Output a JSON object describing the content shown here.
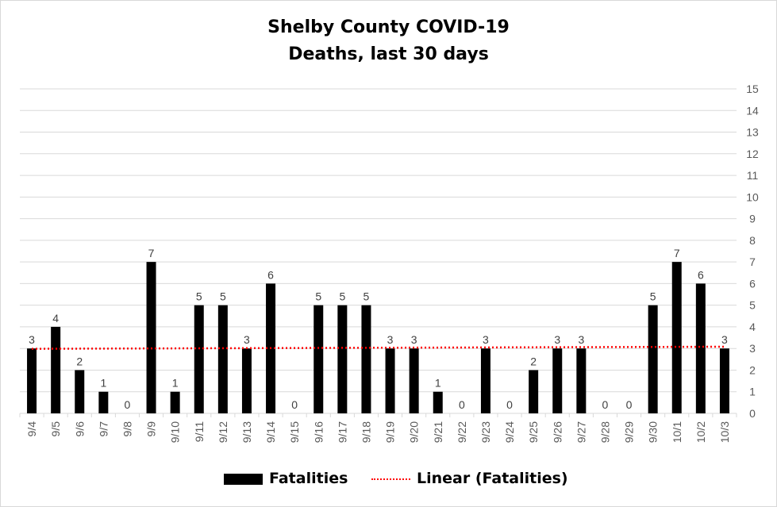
{
  "chart_data": {
    "type": "bar",
    "title": "Shelby County COVID-19",
    "subtitle": "Deaths, last 30 days",
    "categories": [
      "9/4",
      "9/5",
      "9/6",
      "9/7",
      "9/8",
      "9/9",
      "9/10",
      "9/11",
      "9/12",
      "9/13",
      "9/14",
      "9/15",
      "9/16",
      "9/17",
      "9/18",
      "9/19",
      "9/20",
      "9/21",
      "9/22",
      "9/23",
      "9/24",
      "9/25",
      "9/26",
      "9/27",
      "9/28",
      "9/29",
      "9/30",
      "10/1",
      "10/2",
      "10/3"
    ],
    "series": [
      {
        "name": "Fatalities",
        "values": [
          3,
          4,
          2,
          1,
          0,
          7,
          1,
          5,
          5,
          3,
          6,
          0,
          5,
          5,
          5,
          3,
          3,
          1,
          0,
          3,
          0,
          2,
          3,
          3,
          0,
          0,
          5,
          7,
          6,
          3
        ]
      }
    ],
    "trendline": {
      "name": "Linear (Fatalities)",
      "type": "linear",
      "color": "#ff0000"
    },
    "ylim": [
      0,
      15
    ],
    "yticks": [
      0,
      1,
      2,
      3,
      4,
      5,
      6,
      7,
      8,
      9,
      10,
      11,
      12,
      13,
      14,
      15
    ],
    "y_axis_side": "right",
    "grid": true,
    "legend": "bottom",
    "colors": {
      "bars": "#000000",
      "grid": "#d9d9d9",
      "trend": "#ff0000",
      "text": "#595959"
    }
  }
}
